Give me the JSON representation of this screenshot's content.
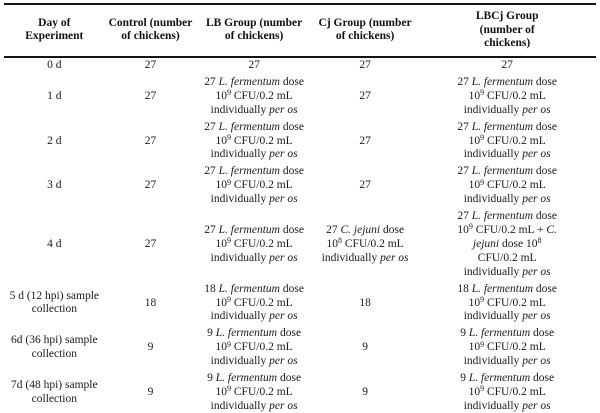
{
  "colors": {
    "text": "#1b1b1b",
    "border": "#141414",
    "background": "#ffffff"
  },
  "table": {
    "headers": [
      [
        "Day of",
        "Experiment"
      ],
      [
        "Control (number",
        "of chickens)"
      ],
      [
        "LB Group (number",
        "of chickens)"
      ],
      [
        "Cj Group (number",
        "of chickens)"
      ],
      [
        "LBCj Group",
        "(number of",
        "chickens)"
      ]
    ],
    "rows": [
      {
        "day": "0 d",
        "cells": [
          "27",
          "27",
          "27",
          "27"
        ]
      },
      {
        "day": "1 d",
        "cells": [
          "27",
          [
            [
              [
                "27 ",
                ""
              ],
              [
                "L. fermentum",
                "i"
              ],
              [
                " dose",
                ""
              ]
            ],
            [
              [
                "10",
                ""
              ],
              [
                "9",
                "s"
              ],
              [
                " CFU/0.2 mL",
                ""
              ]
            ],
            [
              [
                "individually ",
                ""
              ],
              [
                "per os",
                "i"
              ]
            ]
          ],
          "27",
          [
            [
              [
                "27 ",
                ""
              ],
              [
                "L. fermentum",
                "i"
              ],
              [
                " dose",
                ""
              ]
            ],
            [
              [
                "10",
                ""
              ],
              [
                "9",
                "s"
              ],
              [
                " CFU/0.2 mL",
                ""
              ]
            ],
            [
              [
                "individually ",
                ""
              ],
              [
                "per os",
                "i"
              ]
            ]
          ]
        ]
      },
      {
        "day": "2 d",
        "cells": [
          "27",
          [
            [
              [
                "27 ",
                ""
              ],
              [
                "L. fermentum",
                "i"
              ],
              [
                " dose",
                ""
              ]
            ],
            [
              [
                "10",
                ""
              ],
              [
                "9",
                "s"
              ],
              [
                " CFU/0.2 mL",
                ""
              ]
            ],
            [
              [
                "individually ",
                ""
              ],
              [
                "per os",
                "i"
              ]
            ]
          ],
          "27",
          [
            [
              [
                "27 ",
                ""
              ],
              [
                "L. fermentum",
                "i"
              ],
              [
                " dose",
                ""
              ]
            ],
            [
              [
                "10",
                ""
              ],
              [
                "9",
                "s"
              ],
              [
                " CFU/0.2 mL",
                ""
              ]
            ],
            [
              [
                "individually ",
                ""
              ],
              [
                "per os",
                "i"
              ]
            ]
          ]
        ]
      },
      {
        "day": "3 d",
        "cells": [
          "27",
          [
            [
              [
                "27 ",
                ""
              ],
              [
                "L. fermentum",
                "i"
              ],
              [
                " dose",
                ""
              ]
            ],
            [
              [
                "10",
                ""
              ],
              [
                "9",
                "s"
              ],
              [
                " CFU/0.2 mL",
                ""
              ]
            ],
            [
              [
                "individually ",
                ""
              ],
              [
                "per os",
                "i"
              ]
            ]
          ],
          "27",
          [
            [
              [
                "27 ",
                ""
              ],
              [
                "L. fermentum",
                "i"
              ],
              [
                " dose",
                ""
              ]
            ],
            [
              [
                "10",
                ""
              ],
              [
                "9",
                "s"
              ],
              [
                " CFU/0.2 mL",
                ""
              ]
            ],
            [
              [
                "individually ",
                ""
              ],
              [
                "per os",
                "i"
              ]
            ]
          ]
        ]
      },
      {
        "day": "4 d",
        "cells": [
          "27",
          [
            [
              [
                "27 ",
                ""
              ],
              [
                "L. fermentum",
                "i"
              ],
              [
                " dose",
                ""
              ]
            ],
            [
              [
                "10",
                ""
              ],
              [
                "9",
                "s"
              ],
              [
                " CFU/0.2 mL",
                ""
              ]
            ],
            [
              [
                "individually ",
                ""
              ],
              [
                "per os",
                "i"
              ]
            ]
          ],
          [
            [
              [
                "27 ",
                ""
              ],
              [
                "C. jejuni",
                "i"
              ],
              [
                " dose",
                ""
              ]
            ],
            [
              [
                "10",
                ""
              ],
              [
                "8",
                "s"
              ],
              [
                " CFU/0.2 mL",
                ""
              ]
            ],
            [
              [
                "individually ",
                ""
              ],
              [
                "per os",
                "i"
              ]
            ]
          ],
          [
            [
              [
                "27 ",
                ""
              ],
              [
                "L. fermentum",
                "i"
              ],
              [
                " dose",
                ""
              ]
            ],
            [
              [
                "10",
                ""
              ],
              [
                "9",
                "s"
              ],
              [
                " CFU/0.2 mL + ",
                ""
              ],
              [
                "C.",
                "i"
              ]
            ],
            [
              [
                "jejuni",
                "i"
              ],
              [
                " dose 10",
                ""
              ],
              [
                "8",
                "s"
              ]
            ],
            [
              [
                "CFU/0.2 mL",
                ""
              ]
            ],
            [
              [
                "individually ",
                ""
              ],
              [
                "per os",
                "i"
              ]
            ]
          ]
        ]
      },
      {
        "day": "5 d (12 hpi) sample collection",
        "cells": [
          "18",
          [
            [
              [
                "18 ",
                ""
              ],
              [
                "L. fermentum",
                "i"
              ],
              [
                " dose",
                ""
              ]
            ],
            [
              [
                "10",
                ""
              ],
              [
                "9",
                "s"
              ],
              [
                " CFU/0.2 mL",
                ""
              ]
            ],
            [
              [
                "individually ",
                ""
              ],
              [
                "per os",
                "i"
              ]
            ]
          ],
          "18",
          [
            [
              [
                "18 ",
                ""
              ],
              [
                "L. fermentum",
                "i"
              ],
              [
                " dose",
                ""
              ]
            ],
            [
              [
                "10",
                ""
              ],
              [
                "9",
                "s"
              ],
              [
                " CFU/0.2 mL",
                ""
              ]
            ],
            [
              [
                "individually ",
                ""
              ],
              [
                "per os",
                "i"
              ]
            ]
          ]
        ]
      },
      {
        "day": "6d (36 hpi) sample collection",
        "cells": [
          "9",
          [
            [
              [
                "9 ",
                ""
              ],
              [
                "L. fermentum",
                "i"
              ],
              [
                " dose",
                ""
              ]
            ],
            [
              [
                "10",
                ""
              ],
              [
                "9",
                "s"
              ],
              [
                " CFU/0.2 mL",
                ""
              ]
            ],
            [
              [
                "individually ",
                ""
              ],
              [
                "per os",
                "i"
              ]
            ]
          ],
          "9",
          [
            [
              [
                "9 ",
                ""
              ],
              [
                "L. fermentum",
                "i"
              ],
              [
                " dose",
                ""
              ]
            ],
            [
              [
                "10",
                ""
              ],
              [
                "9",
                "s"
              ],
              [
                " CFU/0.2 mL",
                ""
              ]
            ],
            [
              [
                "individually ",
                ""
              ],
              [
                "per os",
                "i"
              ]
            ]
          ]
        ]
      },
      {
        "day": "7d (48 hpi) sample collection",
        "cells": [
          "9",
          [
            [
              [
                "9 ",
                ""
              ],
              [
                "L. fermentum",
                "i"
              ],
              [
                " dose",
                ""
              ]
            ],
            [
              [
                "10",
                ""
              ],
              [
                "9",
                "s"
              ],
              [
                " CFU/0.2 mL",
                ""
              ]
            ],
            [
              [
                "individually ",
                ""
              ],
              [
                "per os",
                "i"
              ]
            ]
          ],
          "9",
          [
            [
              [
                "9 ",
                ""
              ],
              [
                "L. fermentum",
                "i"
              ],
              [
                " dose",
                ""
              ]
            ],
            [
              [
                "10",
                ""
              ],
              [
                "9",
                "s"
              ],
              [
                " CFU/0.2 mL",
                ""
              ]
            ],
            [
              [
                "individually ",
                ""
              ],
              [
                "per os",
                "i"
              ]
            ]
          ]
        ]
      }
    ]
  }
}
